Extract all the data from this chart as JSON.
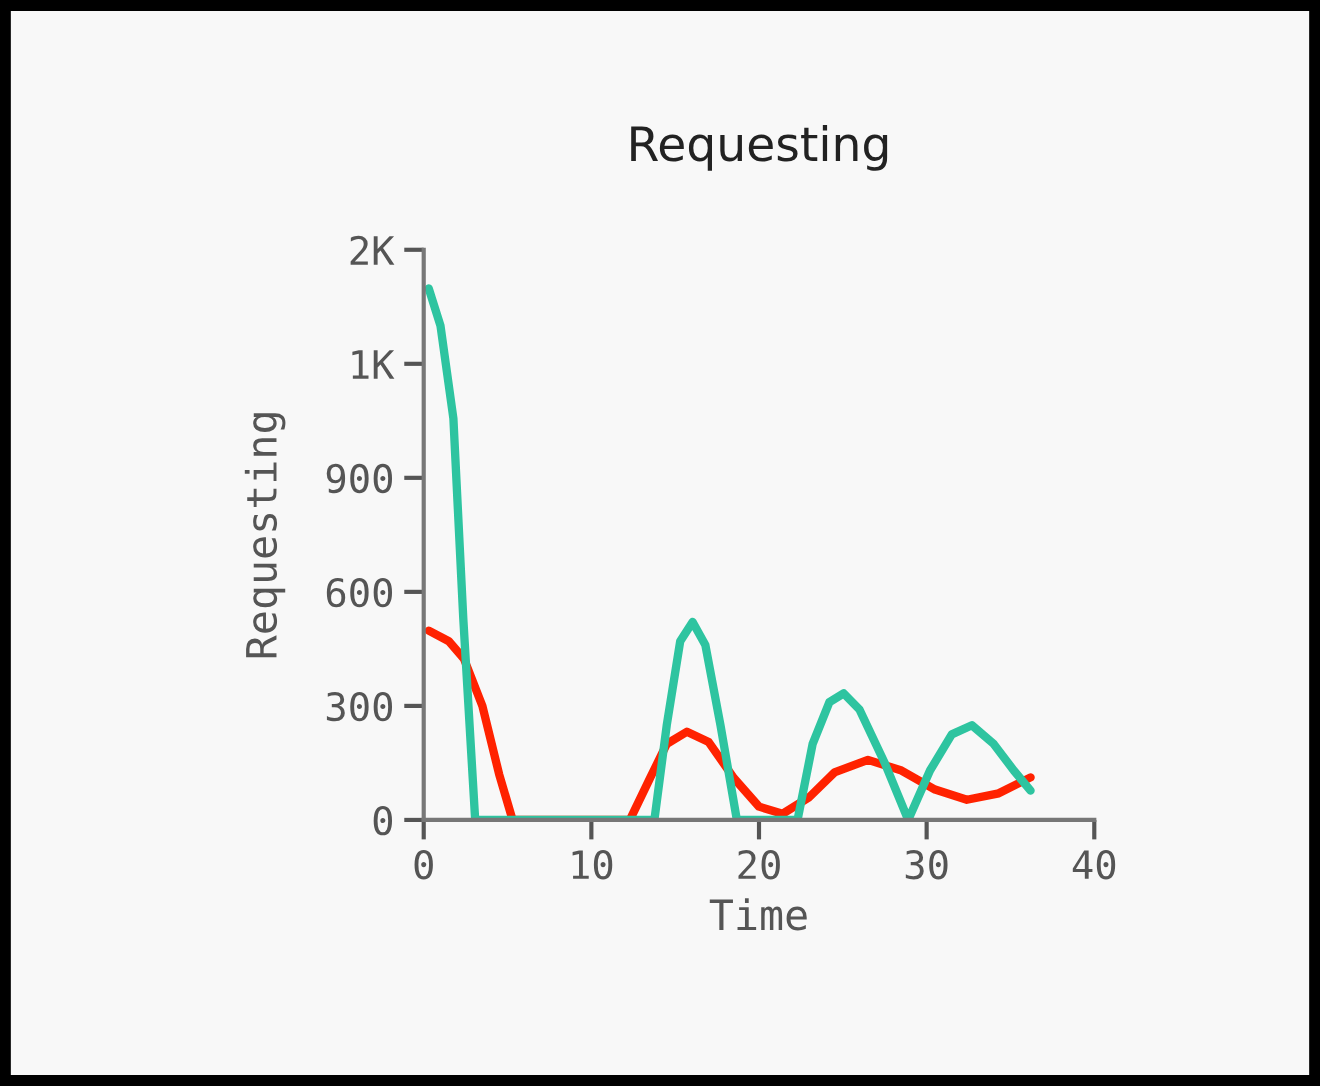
{
  "chart_data": {
    "type": "line",
    "title": "Requesting",
    "xlabel": "Time",
    "ylabel": "Requesting",
    "xlim": [
      0,
      40
    ],
    "xticks": [
      0,
      10,
      20,
      30,
      40
    ],
    "ylim": [
      0,
      1500
    ],
    "yticks": [
      0,
      300,
      600,
      900,
      {
        "value": 1200,
        "label": "1K"
      },
      {
        "value": 1500,
        "label": "2K"
      }
    ],
    "grid": false,
    "legend": false,
    "series": [
      {
        "color": "#ff2200",
        "x": [
          0.3,
          1.5,
          2.4,
          3.5,
          4.5,
          5.3,
          12.3,
          13.5,
          14.5,
          15.7,
          17,
          18.5,
          20,
          21.4,
          23,
          24.5,
          26.5,
          28.5,
          30.5,
          32.4,
          34.3,
          36.2
        ],
        "values": [
          498,
          470,
          424,
          300,
          120,
          0,
          0,
          110,
          200,
          232,
          205,
          110,
          35,
          16,
          60,
          125,
          158,
          130,
          80,
          53,
          70,
          112
        ]
      },
      {
        "color": "#2ec4a0",
        "x": [
          0.3,
          1,
          1.77,
          2.36,
          3.07,
          13.76,
          14.5,
          15.3,
          16.04,
          16.8,
          17.7,
          18.68,
          22.3,
          23.2,
          24.2,
          25.05,
          26,
          27.5,
          28.9,
          30.2,
          31.5,
          32.7,
          34,
          35.2,
          36.2
        ],
        "values": [
          1398,
          1300,
          1056,
          530,
          0,
          0,
          250,
          470,
          521,
          460,
          250,
          0,
          0,
          200,
          310,
          333,
          290,
          150,
          0,
          130,
          225,
          249,
          200,
          130,
          77
        ]
      }
    ]
  }
}
